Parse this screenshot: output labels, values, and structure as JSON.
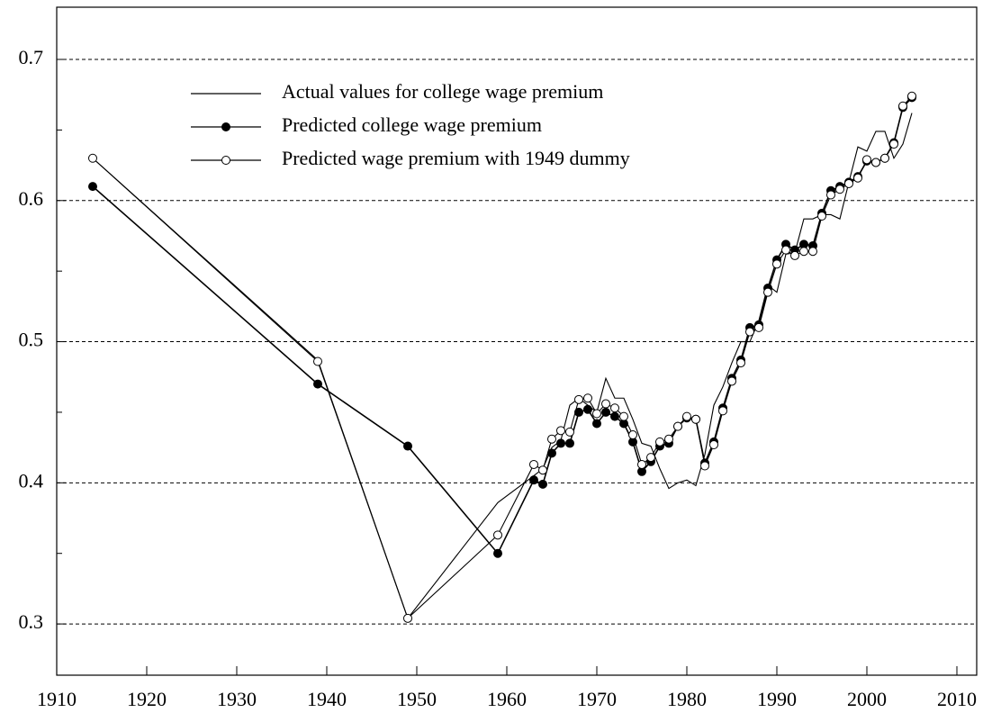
{
  "chart_data": {
    "type": "line",
    "x": [
      1914,
      1939,
      1949,
      1959,
      1963,
      1964,
      1965,
      1966,
      1967,
      1968,
      1969,
      1970,
      1971,
      1972,
      1973,
      1974,
      1975,
      1976,
      1977,
      1978,
      1979,
      1980,
      1981,
      1982,
      1983,
      1984,
      1985,
      1986,
      1987,
      1988,
      1989,
      1990,
      1991,
      1992,
      1993,
      1994,
      1995,
      1996,
      1997,
      1998,
      1999,
      2000,
      2001,
      2002,
      2003,
      2004,
      2005
    ],
    "series": [
      {
        "name": "Actual values for college wage premium",
        "color": "#000000",
        "marker": "none",
        "values": [
          0.63,
          0.487,
          0.304,
          0.386,
          0.405,
          0.41,
          0.425,
          0.43,
          0.455,
          0.46,
          0.455,
          0.45,
          0.474,
          0.46,
          0.46,
          0.445,
          0.428,
          0.426,
          0.41,
          0.396,
          0.4,
          0.402,
          0.398,
          0.42,
          0.455,
          0.468,
          0.485,
          0.5,
          0.5,
          0.515,
          0.54,
          0.535,
          0.562,
          0.563,
          0.587,
          0.587,
          0.59,
          0.59,
          0.587,
          0.613,
          0.638,
          0.635,
          0.649,
          0.649,
          0.63,
          0.64,
          0.662
        ]
      },
      {
        "name": "Predicted college wage premium",
        "color": "#000000",
        "marker": "filled",
        "values": [
          0.61,
          0.47,
          0.426,
          0.35,
          0.402,
          0.399,
          0.421,
          0.428,
          0.428,
          0.45,
          0.452,
          0.442,
          0.45,
          0.447,
          0.442,
          0.429,
          0.408,
          0.415,
          0.426,
          0.428,
          0.44,
          0.446,
          0.445,
          0.414,
          0.429,
          0.453,
          0.474,
          0.487,
          0.51,
          0.512,
          0.538,
          0.558,
          0.569,
          0.565,
          0.569,
          0.568,
          0.591,
          0.607,
          0.61,
          0.613,
          0.617,
          0.628,
          0.627,
          0.63,
          0.641,
          0.666,
          0.673
        ]
      },
      {
        "name": "Predicted wage premium with 1949 dummy",
        "color": "#000000",
        "marker": "open",
        "values": [
          0.63,
          0.486,
          0.304,
          0.363,
          0.413,
          0.409,
          0.431,
          0.437,
          0.436,
          0.459,
          0.46,
          0.449,
          0.456,
          0.453,
          0.447,
          0.434,
          0.413,
          0.418,
          0.429,
          0.431,
          0.44,
          0.447,
          0.445,
          0.412,
          0.427,
          0.451,
          0.472,
          0.485,
          0.507,
          0.51,
          0.535,
          0.555,
          0.565,
          0.561,
          0.564,
          0.564,
          0.589,
          0.604,
          0.608,
          0.612,
          0.616,
          0.629,
          0.627,
          0.63,
          0.64,
          0.667,
          0.674
        ]
      }
    ],
    "xlim": [
      1910,
      2012.2
    ],
    "ylim": [
      0.2637,
      0.737
    ],
    "xticks": [
      1910,
      1920,
      1930,
      1940,
      1950,
      1960,
      1970,
      1980,
      1990,
      2000,
      2010
    ],
    "yticks": [
      0.3,
      0.4,
      0.5,
      0.6,
      0.7
    ],
    "yminor_ticks": [
      0.35,
      0.45,
      0.55,
      0.65
    ],
    "grid": true,
    "legend": "upper left"
  }
}
